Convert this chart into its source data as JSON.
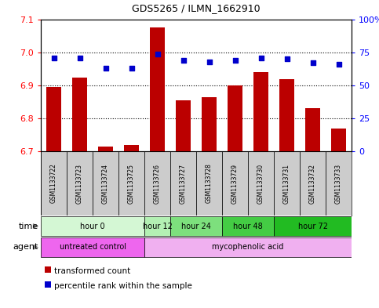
{
  "title": "GDS5265 / ILMN_1662910",
  "samples": [
    "GSM1133722",
    "GSM1133723",
    "GSM1133724",
    "GSM1133725",
    "GSM1133726",
    "GSM1133727",
    "GSM1133728",
    "GSM1133729",
    "GSM1133730",
    "GSM1133731",
    "GSM1133732",
    "GSM1133733"
  ],
  "bar_values": [
    6.895,
    6.925,
    6.715,
    6.72,
    7.075,
    6.855,
    6.865,
    6.9,
    6.94,
    6.92,
    6.83,
    6.77
  ],
  "dot_values": [
    71,
    71,
    63,
    63,
    74,
    69,
    68,
    69,
    71,
    70,
    67,
    66
  ],
  "ylim": [
    6.7,
    7.1
  ],
  "ylim_right": [
    0,
    100
  ],
  "yticks_left": [
    6.7,
    6.8,
    6.9,
    7.0,
    7.1
  ],
  "yticks_right": [
    0,
    25,
    50,
    75,
    100
  ],
  "ytick_labels_right": [
    "0",
    "25",
    "50",
    "75",
    "100%"
  ],
  "bar_color": "#bb0000",
  "dot_color": "#0000cc",
  "bar_bottom": 6.7,
  "time_colors": [
    "#d4f7d4",
    "#b3f0b3",
    "#7de07d",
    "#44cc44",
    "#22bb22"
  ],
  "time_groups": [
    {
      "label": "hour 0",
      "start": 0,
      "end": 4
    },
    {
      "label": "hour 12",
      "start": 4,
      "end": 5
    },
    {
      "label": "hour 24",
      "start": 5,
      "end": 7
    },
    {
      "label": "hour 48",
      "start": 7,
      "end": 9
    },
    {
      "label": "hour 72",
      "start": 9,
      "end": 12
    }
  ],
  "agent_colors": [
    "#ee66ee",
    "#f0b0f0"
  ],
  "agent_groups": [
    {
      "label": "untreated control",
      "start": 0,
      "end": 4
    },
    {
      "label": "mycophenolic acid",
      "start": 4,
      "end": 12
    }
  ],
  "legend_bar_label": "transformed count",
  "legend_dot_label": "percentile rank within the sample",
  "sample_bg": "#cccccc",
  "chart_bg": "#ffffff"
}
